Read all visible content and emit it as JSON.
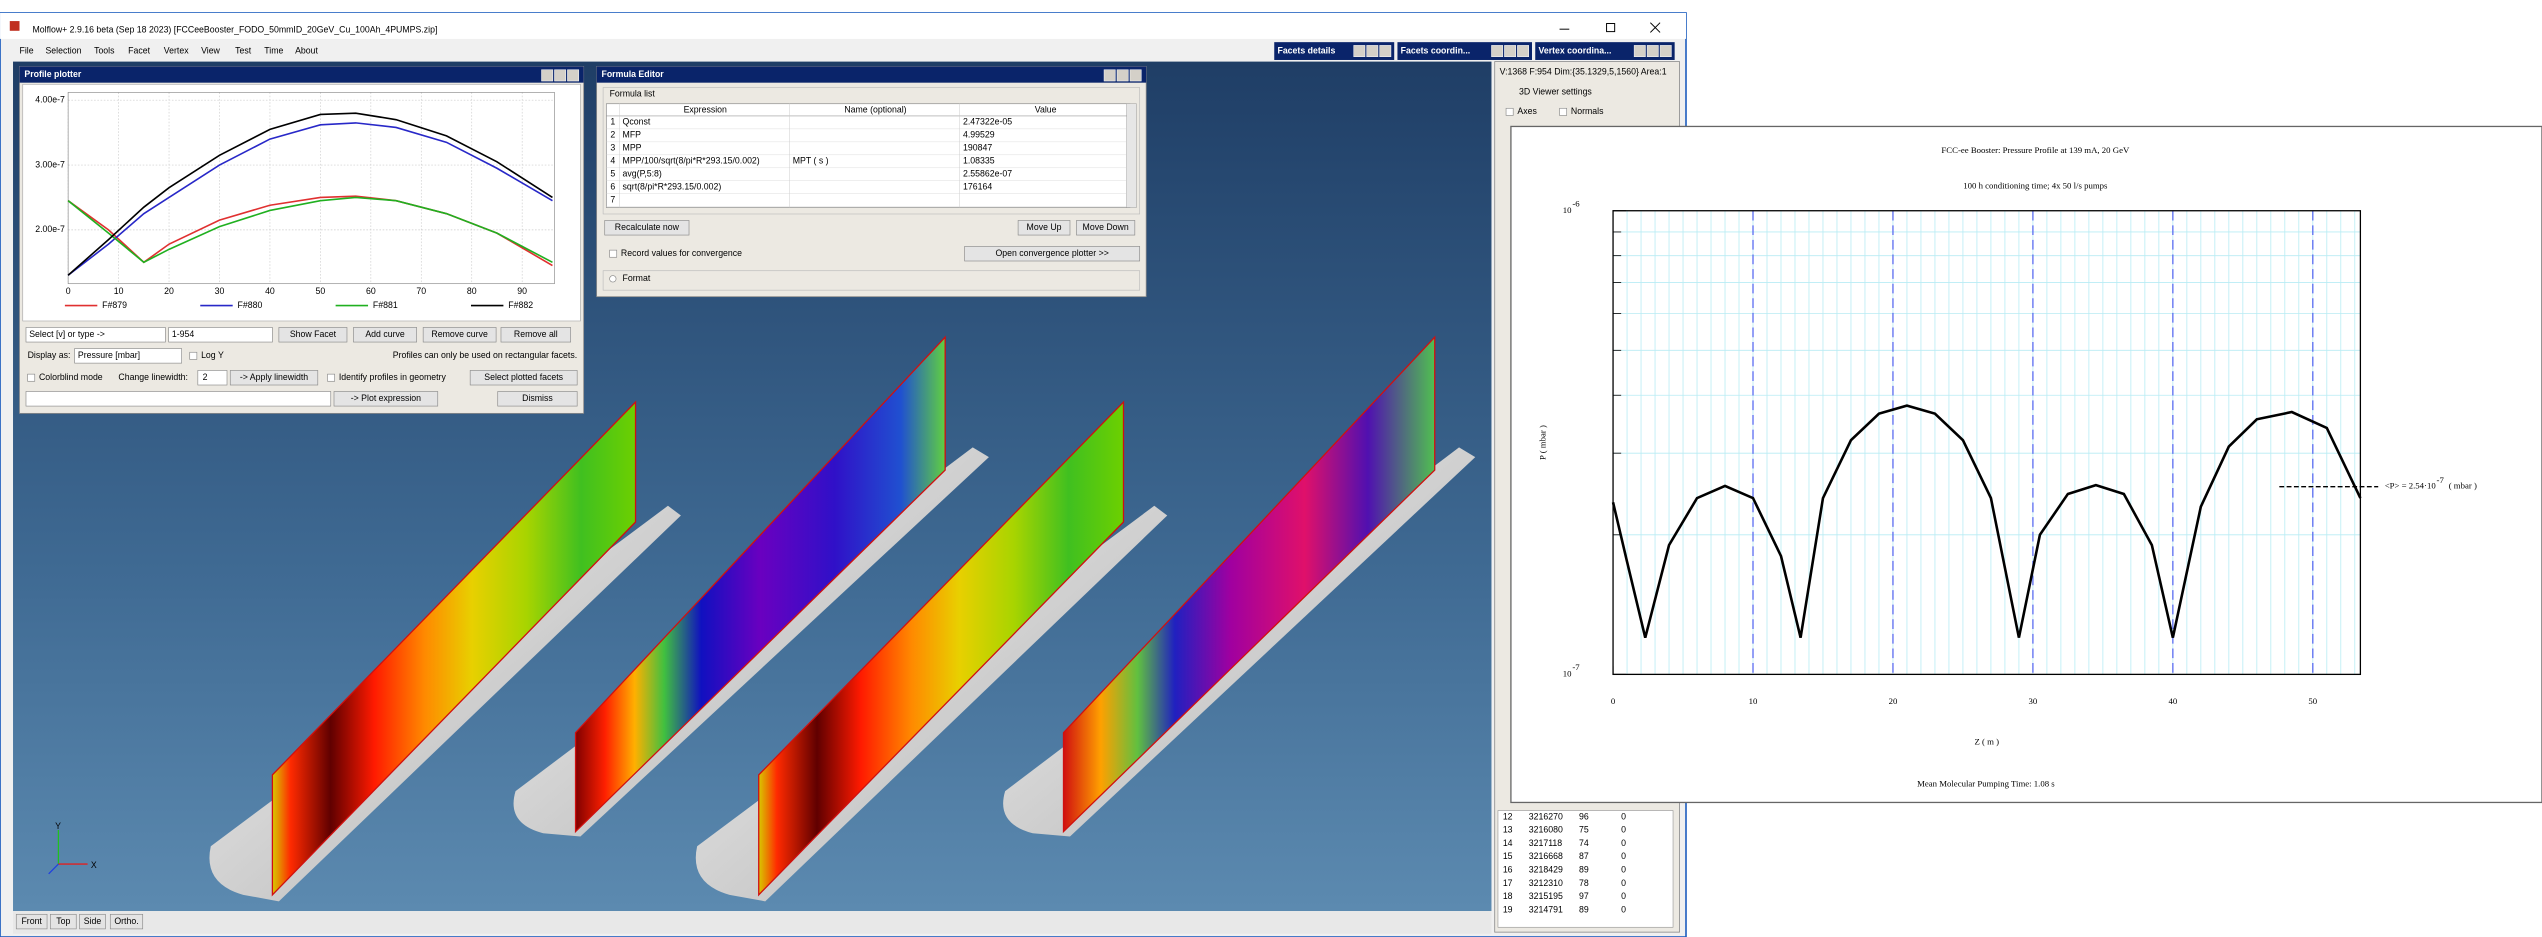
{
  "window": {
    "title": "Molflow+ 2.9.16 beta (Sep 18 2023) [FCCeeBooster_FODO_50mmID_20GeV_Cu_100Ah_4PUMPS.zip]",
    "menu": [
      "File",
      "Selection",
      "Tools",
      "Facet",
      "Vertex",
      "View",
      "Test",
      "Time",
      "About"
    ],
    "side_windows": [
      "Facets details",
      "Facets coordin...",
      "Vertex coordina..."
    ],
    "view_buttons": [
      "Front",
      "Top",
      "Side",
      "Ortho."
    ],
    "axes": [
      "Y",
      "X"
    ]
  },
  "profile_plotter": {
    "title": "Profile plotter",
    "select": "Select [v] or type ->",
    "facet_input": "1-954",
    "buttons": [
      "Show Facet",
      "Add curve",
      "Remove curve",
      "Remove all"
    ],
    "display_as": "Display as:",
    "display_value": "Pressure [mbar]",
    "log_y": "Log Y",
    "note": "Profiles can only be used on rectangular facets.",
    "colorblind": "Colorblind mode",
    "linewidth_label": "Change linewidth:",
    "linewidth": "2",
    "apply_linewidth": "-> Apply linewidth",
    "identify": "Identify profiles in geometry",
    "select_plotted": "Select plotted facets",
    "plot_expression": "-> Plot expression",
    "dismiss": "Dismiss"
  },
  "formula_editor": {
    "title": "Formula Editor",
    "section": "Formula list",
    "columns": [
      "Expression",
      "Name (optional)",
      "Value"
    ],
    "rows": [
      {
        "n": "1",
        "expression": "Qconst",
        "value": "2.47322e-05"
      },
      {
        "n": "2",
        "expression": "MFP",
        "value": "4.99529"
      },
      {
        "n": "3",
        "expression": "MPP",
        "value": "190847"
      },
      {
        "n": "4",
        "expression": "MPP/100/sqrt(8/pi*R*293.15/0.002)",
        "name": "MPT ( s )",
        "value": "1.08335"
      },
      {
        "n": "5",
        "expression": "avg(P,5:8)",
        "value": "2.55862e-07"
      },
      {
        "n": "6",
        "expression": "sqrt(8/pi*R*293.15/0.002)",
        "value": "176164"
      },
      {
        "n": "7"
      }
    ],
    "recalculate": "Recalculate now",
    "move_up": "Move Up",
    "move_down": "Move Down",
    "record": "Record values for convergence",
    "open_plotter": "Open convergence plotter >>",
    "format": "Format"
  },
  "side_panel": {
    "header": "V:1368 F:954 Dim:{35.1329,5,1560} Area:1",
    "section": "3D Viewer settings",
    "checkboxes": [
      "Axes",
      "Normals"
    ],
    "rows": [
      [
        "12",
        "3216270",
        "96",
        "0"
      ],
      [
        "13",
        "3216080",
        "75",
        "0"
      ],
      [
        "14",
        "3217118",
        "74",
        "0"
      ],
      [
        "15",
        "3216668",
        "87",
        "0"
      ],
      [
        "16",
        "3218429",
        "89",
        "0"
      ],
      [
        "17",
        "3212310",
        "78",
        "0"
      ],
      [
        "18",
        "3215195",
        "97",
        "0"
      ],
      [
        "19",
        "3214791",
        "89",
        "0"
      ]
    ]
  },
  "chart_data": [
    {
      "type": "line",
      "x": [
        0,
        8,
        15,
        20,
        30,
        40,
        50,
        57,
        65,
        75,
        85,
        96
      ],
      "series": [
        {
          "name": "F#879",
          "color": "#e03030",
          "values": [
            2.45e-07,
            2e-07,
            1.5e-07,
            1.78e-07,
            2.15e-07,
            2.38e-07,
            2.5e-07,
            2.52e-07,
            2.45e-07,
            2.25e-07,
            1.95e-07,
            1.45e-07
          ]
        },
        {
          "name": "F#880",
          "color": "#2828c8",
          "values": [
            1.3e-07,
            1.78e-07,
            2.25e-07,
            2.5e-07,
            3e-07,
            3.4e-07,
            3.62e-07,
            3.65e-07,
            3.58e-07,
            3.35e-07,
            2.95e-07,
            2.45e-07
          ]
        },
        {
          "name": "F#881",
          "color": "#20b020",
          "values": [
            2.45e-07,
            1.95e-07,
            1.5e-07,
            1.7e-07,
            2.05e-07,
            2.3e-07,
            2.45e-07,
            2.5e-07,
            2.45e-07,
            2.25e-07,
            1.95e-07,
            1.5e-07
          ]
        },
        {
          "name": "F#882",
          "color": "#000000",
          "values": [
            1.3e-07,
            1.85e-07,
            2.35e-07,
            2.65e-07,
            3.15e-07,
            3.55e-07,
            3.78e-07,
            3.8e-07,
            3.7e-07,
            3.45e-07,
            3.05e-07,
            2.5e-07
          ]
        }
      ],
      "xlim": [
        0,
        96.4
      ],
      "ylim": [
        1.17e-07,
        4.12e-07
      ],
      "xticks": [
        0,
        10,
        20,
        30,
        40,
        50,
        60,
        70,
        80,
        90
      ],
      "yticks": [
        {
          "value": 2e-07,
          "label": "2.00e-7"
        },
        {
          "value": 3e-07,
          "label": "3.00e-7"
        },
        {
          "value": 4e-07,
          "label": "4.00e-7"
        }
      ],
      "grid": true
    },
    {
      "type": "line",
      "title": [
        "FCC-ee Booster: Pressure Profile at 139 mA, 20 GeV",
        "100 h conditioning time; 4x 50 l/s pumps"
      ],
      "x_label": "Z ( m )",
      "y_label": "P ( mbar )",
      "footer": "Mean Molecular Pumping Time: 1.08 s",
      "x": [
        0,
        1,
        2.3,
        4,
        6,
        8,
        10,
        12,
        13.4,
        15,
        17,
        19,
        21,
        23,
        25,
        27,
        29,
        30.5,
        32.5,
        34.5,
        36.5,
        38.5,
        40,
        42,
        44,
        46,
        48.5,
        51,
        53.4
      ],
      "series": [
        {
          "color": "#000000",
          "values": [
            2.35e-07,
            1.75e-07,
            1.2e-07,
            1.9e-07,
            2.4e-07,
            2.55e-07,
            2.4e-07,
            1.8e-07,
            1.2e-07,
            2.4e-07,
            3.2e-07,
            3.65e-07,
            3.8e-07,
            3.65e-07,
            3.2e-07,
            2.4e-07,
            1.2e-07,
            2e-07,
            2.45e-07,
            2.56e-07,
            2.45e-07,
            1.9e-07,
            1.2e-07,
            2.3e-07,
            3.1e-07,
            3.55e-07,
            3.68e-07,
            3.4e-07,
            2.4e-07
          ]
        }
      ],
      "xlim": [
        0,
        53.4
      ],
      "ylim": [
        1e-07,
        1e-06
      ],
      "log_y": true,
      "xticks": [
        0,
        10,
        20,
        30,
        40,
        50
      ],
      "yticks": [
        {
          "value": 1e-07,
          "label": "10",
          "exponent": "-7"
        },
        {
          "value": 1e-06,
          "label": "10",
          "exponent": "-6"
        }
      ],
      "grid": true,
      "annotation": {
        "value": 2.54e-07,
        "text": "<P> = 2.54·10",
        "exponent": "-7",
        "unit": "( mbar )"
      }
    }
  ]
}
